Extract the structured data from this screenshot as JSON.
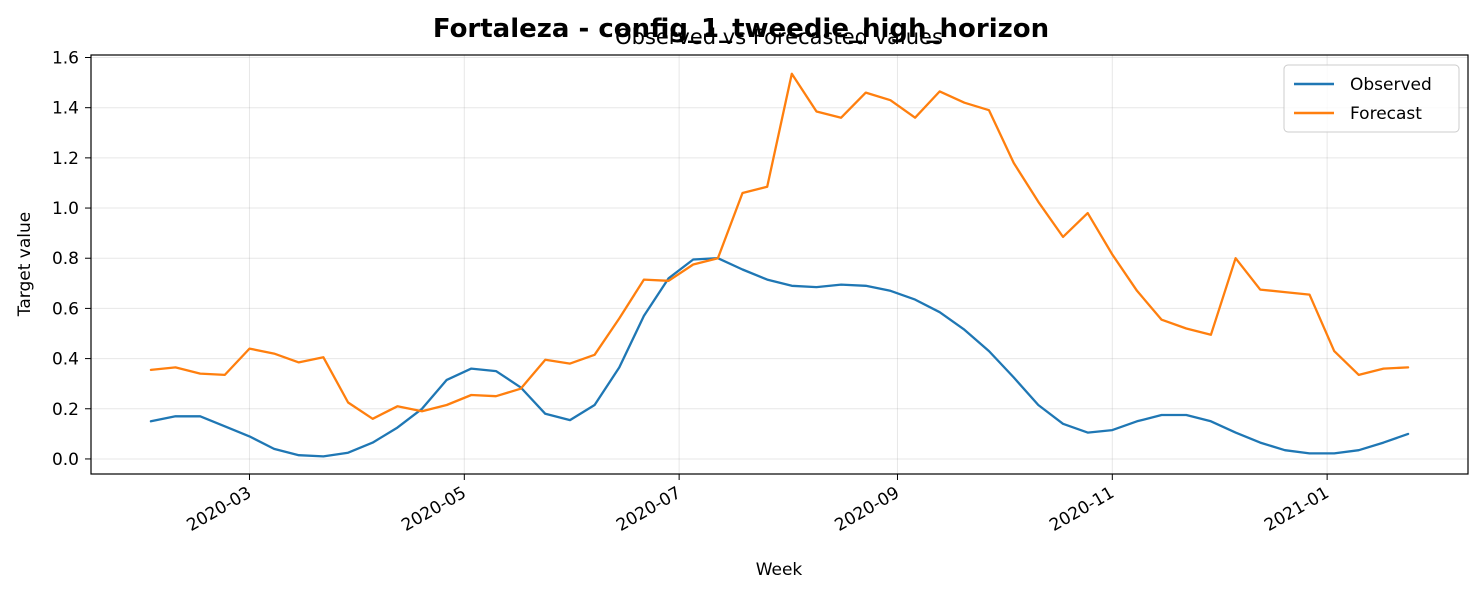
{
  "chart_data": {
    "type": "line",
    "title": "Fortaleza - config_1_tweedie_high_horizon",
    "subtitle": "Observed vs Forecasted values",
    "xlabel": "Week",
    "ylabel": "Target value",
    "xlim": [
      "2020-01-16",
      "2021-02-10"
    ],
    "ylim": [
      -0.06,
      1.61
    ],
    "yticks": [
      0.0,
      0.2,
      0.4,
      0.6,
      0.8,
      1.0,
      1.2,
      1.4,
      1.6
    ],
    "ytick_labels": [
      "0.0",
      "0.2",
      "0.4",
      "0.6",
      "0.8",
      "1.0",
      "1.2",
      "1.4",
      "1.6"
    ],
    "xticks": [
      "2020-03-01",
      "2020-05-01",
      "2020-07-01",
      "2020-09-01",
      "2020-11-01",
      "2021-01-01"
    ],
    "xtick_labels": [
      "2020-03",
      "2020-05",
      "2020-07",
      "2020-09",
      "2020-11",
      "2021-01"
    ],
    "grid": true,
    "legend": "top-right",
    "x": [
      "2020-02-02",
      "2020-02-09",
      "2020-02-16",
      "2020-02-23",
      "2020-03-01",
      "2020-03-08",
      "2020-03-15",
      "2020-03-22",
      "2020-03-29",
      "2020-04-05",
      "2020-04-12",
      "2020-04-19",
      "2020-04-26",
      "2020-05-03",
      "2020-05-10",
      "2020-05-17",
      "2020-05-24",
      "2020-05-31",
      "2020-06-07",
      "2020-06-14",
      "2020-06-21",
      "2020-06-28",
      "2020-07-05",
      "2020-07-12",
      "2020-07-19",
      "2020-07-26",
      "2020-08-02",
      "2020-08-09",
      "2020-08-16",
      "2020-08-23",
      "2020-08-30",
      "2020-09-06",
      "2020-09-13",
      "2020-09-20",
      "2020-09-27",
      "2020-10-04",
      "2020-10-11",
      "2020-10-18",
      "2020-10-25",
      "2020-11-01",
      "2020-11-08",
      "2020-11-15",
      "2020-11-22",
      "2020-11-29",
      "2020-12-06",
      "2020-12-13",
      "2020-12-20",
      "2020-12-27",
      "2021-01-03",
      "2021-01-10",
      "2021-01-17",
      "2021-01-24"
    ],
    "series": [
      {
        "name": "Observed",
        "color": "#1f77b4",
        "values": [
          0.15,
          0.17,
          0.17,
          0.13,
          0.09,
          0.04,
          0.015,
          0.01,
          0.025,
          0.065,
          0.125,
          0.2,
          0.315,
          0.36,
          0.35,
          0.285,
          0.18,
          0.155,
          0.215,
          0.365,
          0.57,
          0.72,
          0.795,
          0.8,
          0.755,
          0.715,
          0.69,
          0.685,
          0.695,
          0.69,
          0.67,
          0.635,
          0.585,
          0.515,
          0.43,
          0.325,
          0.215,
          0.14,
          0.105,
          0.115,
          0.15,
          0.175,
          0.175,
          0.15,
          0.105,
          0.065,
          0.035,
          0.022,
          0.022,
          0.035,
          0.065,
          0.1
        ]
      },
      {
        "name": "Forecast",
        "color": "#ff7f0e",
        "values": [
          0.355,
          0.365,
          0.34,
          0.335,
          0.44,
          0.42,
          0.385,
          0.405,
          0.225,
          0.16,
          0.21,
          0.19,
          0.215,
          0.255,
          0.25,
          0.28,
          0.395,
          0.38,
          0.415,
          0.56,
          0.715,
          0.71,
          0.775,
          0.8,
          1.06,
          1.085,
          1.535,
          1.385,
          1.36,
          1.46,
          1.43,
          1.36,
          1.465,
          1.42,
          1.39,
          1.18,
          1.025,
          0.885,
          0.98,
          0.815,
          0.67,
          0.555,
          0.52,
          0.495,
          0.8,
          0.675,
          0.665,
          0.655,
          0.43,
          0.335,
          0.36,
          0.365
        ]
      }
    ]
  }
}
